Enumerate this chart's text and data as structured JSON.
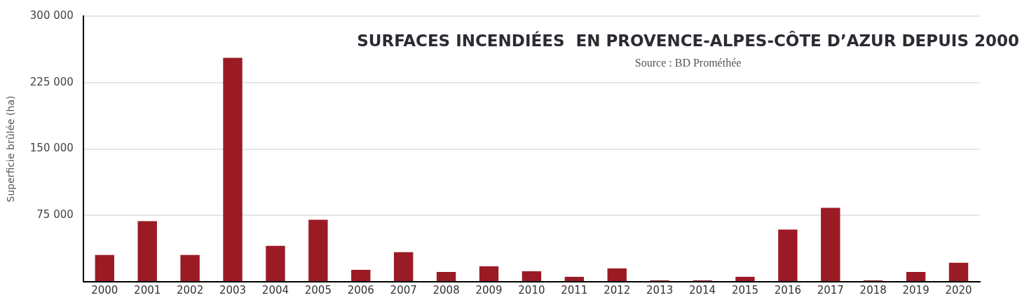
{
  "chart_data": {
    "type": "bar",
    "title": "SURFACES INCENDIÉES  EN PROVENCE-ALPES-CÔTE D’AZUR DEPUIS 2000",
    "annotations": [
      "Source : BD Prométhée"
    ],
    "ylabel": "Superficie brûlée (ha)",
    "categories": [
      "2000",
      "2001",
      "2002",
      "2003",
      "2004",
      "2005",
      "2006",
      "2007",
      "2008",
      "2009",
      "2010",
      "2011",
      "2012",
      "2013",
      "2014",
      "2015",
      "2016",
      "2017",
      "2018",
      "2019",
      "2020"
    ],
    "values": [
      30200,
      68400,
      30200,
      253000,
      40600,
      70000,
      13500,
      33400,
      11100,
      17500,
      11900,
      5600,
      15100,
      1600,
      1600,
      5600,
      58900,
      83600,
      1600,
      11100,
      21500
    ],
    "color": "#9b1b24",
    "ylim": [
      0,
      300000
    ],
    "yticks": [
      {
        "value": 0,
        "label": null
      },
      {
        "value": 75000,
        "label": "75 000"
      },
      {
        "value": 150000,
        "label": "150 000"
      },
      {
        "value": 225000,
        "label": "225 000"
      },
      {
        "value": 300000,
        "label": "300 000"
      }
    ],
    "grid": "y",
    "legend": false
  }
}
